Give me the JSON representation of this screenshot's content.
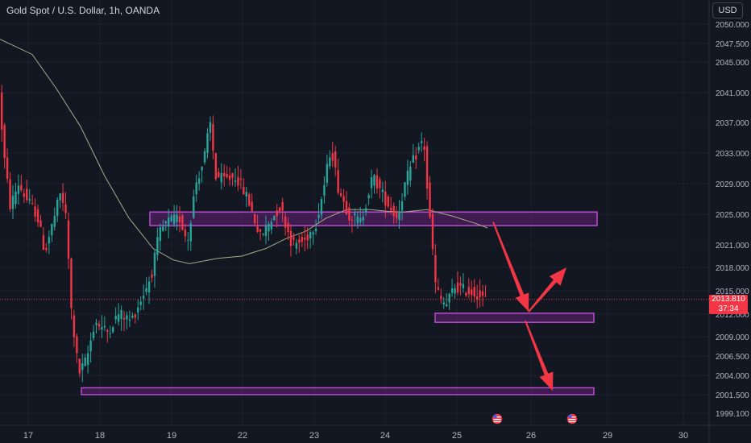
{
  "header": {
    "title": "Gold Spot / U.S. Dollar, 1h, OANDA",
    "currency_button": "USD"
  },
  "price_tag": {
    "price": "2013.810",
    "countdown": "37:34"
  },
  "event_icons": [
    "flag-us-icon",
    "flag-us-icon"
  ],
  "colors": {
    "background": "#131722",
    "up": "#26a69a",
    "down": "#f23645",
    "zone": "#9c27b0",
    "arrow": "#f23645",
    "ma": "#a5ab86"
  },
  "chart_data": {
    "type": "candlestick",
    "title": "Gold Spot / U.S. Dollar, 1h, OANDA",
    "x_tick_labels": [
      "17",
      "18",
      "19",
      "22",
      "23",
      "24",
      "25",
      "26",
      "29",
      "30"
    ],
    "y_tick_labels": [
      "2050.000",
      "2047.500",
      "2045.000",
      "2041.000",
      "2037.000",
      "2033.000",
      "2029.000",
      "2025.000",
      "2021.000",
      "2018.000",
      "2015.000",
      "2012.000",
      "2009.000",
      "2006.500",
      "2004.000",
      "2001.500",
      "1999.100"
    ],
    "y_range": [
      1998.0,
      2052.0
    ],
    "last_price": 2013.81,
    "price_path": [
      {
        "x": 0,
        "y": 2042.0
      },
      {
        "x": 8,
        "y": 2032.0
      },
      {
        "x": 15,
        "y": 2026.0
      },
      {
        "x": 25,
        "y": 2029.0
      },
      {
        "x": 35,
        "y": 2027.0
      },
      {
        "x": 48,
        "y": 2025.0
      },
      {
        "x": 58,
        "y": 2020.0
      },
      {
        "x": 68,
        "y": 2024.0
      },
      {
        "x": 78,
        "y": 2028.0
      },
      {
        "x": 85,
        "y": 2024.0
      },
      {
        "x": 90,
        "y": 2013.0
      },
      {
        "x": 100,
        "y": 2004.0
      },
      {
        "x": 110,
        "y": 2006.0
      },
      {
        "x": 120,
        "y": 2011.0
      },
      {
        "x": 135,
        "y": 2009.5
      },
      {
        "x": 150,
        "y": 2012.0
      },
      {
        "x": 165,
        "y": 2011.0
      },
      {
        "x": 178,
        "y": 2014.0
      },
      {
        "x": 190,
        "y": 2017.0
      },
      {
        "x": 200,
        "y": 2022.5
      },
      {
        "x": 210,
        "y": 2024.0
      },
      {
        "x": 225,
        "y": 2024.5
      },
      {
        "x": 235,
        "y": 2021.5
      },
      {
        "x": 245,
        "y": 2029.0
      },
      {
        "x": 255,
        "y": 2032.0
      },
      {
        "x": 263,
        "y": 2037.0
      },
      {
        "x": 270,
        "y": 2030.0
      },
      {
        "x": 280,
        "y": 2029.5
      },
      {
        "x": 295,
        "y": 2030.0
      },
      {
        "x": 310,
        "y": 2027.0
      },
      {
        "x": 325,
        "y": 2022.0
      },
      {
        "x": 340,
        "y": 2024.5
      },
      {
        "x": 350,
        "y": 2026.0
      },
      {
        "x": 365,
        "y": 2021.0
      },
      {
        "x": 380,
        "y": 2021.5
      },
      {
        "x": 395,
        "y": 2024.0
      },
      {
        "x": 405,
        "y": 2029.0
      },
      {
        "x": 413,
        "y": 2034.0
      },
      {
        "x": 422,
        "y": 2028.5
      },
      {
        "x": 435,
        "y": 2025.0
      },
      {
        "x": 450,
        "y": 2024.0
      },
      {
        "x": 465,
        "y": 2030.0
      },
      {
        "x": 480,
        "y": 2027.0
      },
      {
        "x": 495,
        "y": 2024.5
      },
      {
        "x": 505,
        "y": 2029.0
      },
      {
        "x": 515,
        "y": 2032.0
      },
      {
        "x": 528,
        "y": 2035.0
      },
      {
        "x": 534,
        "y": 2026.0
      },
      {
        "x": 538,
        "y": 2022.0
      },
      {
        "x": 542,
        "y": 2016.0
      },
      {
        "x": 548,
        "y": 2014.0
      },
      {
        "x": 556,
        "y": 2013.0
      },
      {
        "x": 566,
        "y": 2015.5
      },
      {
        "x": 580,
        "y": 2015.0
      },
      {
        "x": 595,
        "y": 2014.5
      },
      {
        "x": 603,
        "y": 2013.8
      }
    ],
    "moving_average": [
      {
        "x": 0,
        "y": 2048.0
      },
      {
        "x": 10,
        "y": 2047.5
      },
      {
        "x": 40,
        "y": 2046.0
      },
      {
        "x": 70,
        "y": 2041.5
      },
      {
        "x": 100,
        "y": 2036.5
      },
      {
        "x": 130,
        "y": 2030.0
      },
      {
        "x": 160,
        "y": 2024.5
      },
      {
        "x": 190,
        "y": 2020.5
      },
      {
        "x": 215,
        "y": 2019.0
      },
      {
        "x": 235,
        "y": 2018.5
      },
      {
        "x": 270,
        "y": 2019.2
      },
      {
        "x": 300,
        "y": 2019.5
      },
      {
        "x": 330,
        "y": 2020.5
      },
      {
        "x": 355,
        "y": 2021.8
      },
      {
        "x": 380,
        "y": 2022.8
      },
      {
        "x": 405,
        "y": 2024.5
      },
      {
        "x": 430,
        "y": 2025.6
      },
      {
        "x": 460,
        "y": 2025.6
      },
      {
        "x": 480,
        "y": 2025.4
      },
      {
        "x": 500,
        "y": 2025.3
      },
      {
        "x": 530,
        "y": 2025.6
      },
      {
        "x": 560,
        "y": 2024.8
      },
      {
        "x": 590,
        "y": 2023.8
      },
      {
        "x": 605,
        "y": 2023.2
      }
    ],
    "zones": [
      {
        "x_start": 186,
        "x_end": 741,
        "y_top": 2025.3,
        "y_bottom": 2023.5
      },
      {
        "x_start": 540,
        "x_end": 737,
        "y_top": 2012.0,
        "y_bottom": 2010.8
      },
      {
        "x_start": 101,
        "x_end": 737,
        "y_top": 2002.2,
        "y_bottom": 2001.3
      }
    ],
    "arrows": [
      {
        "from": [
          612,
          2024.0
        ],
        "to": [
          656,
          2012.2
        ]
      },
      {
        "from": [
          656,
          2012.2
        ],
        "to": [
          703,
          2018.0
        ]
      },
      {
        "from": [
          652,
          2011.0
        ],
        "to": [
          686,
          2001.8
        ]
      }
    ]
  }
}
